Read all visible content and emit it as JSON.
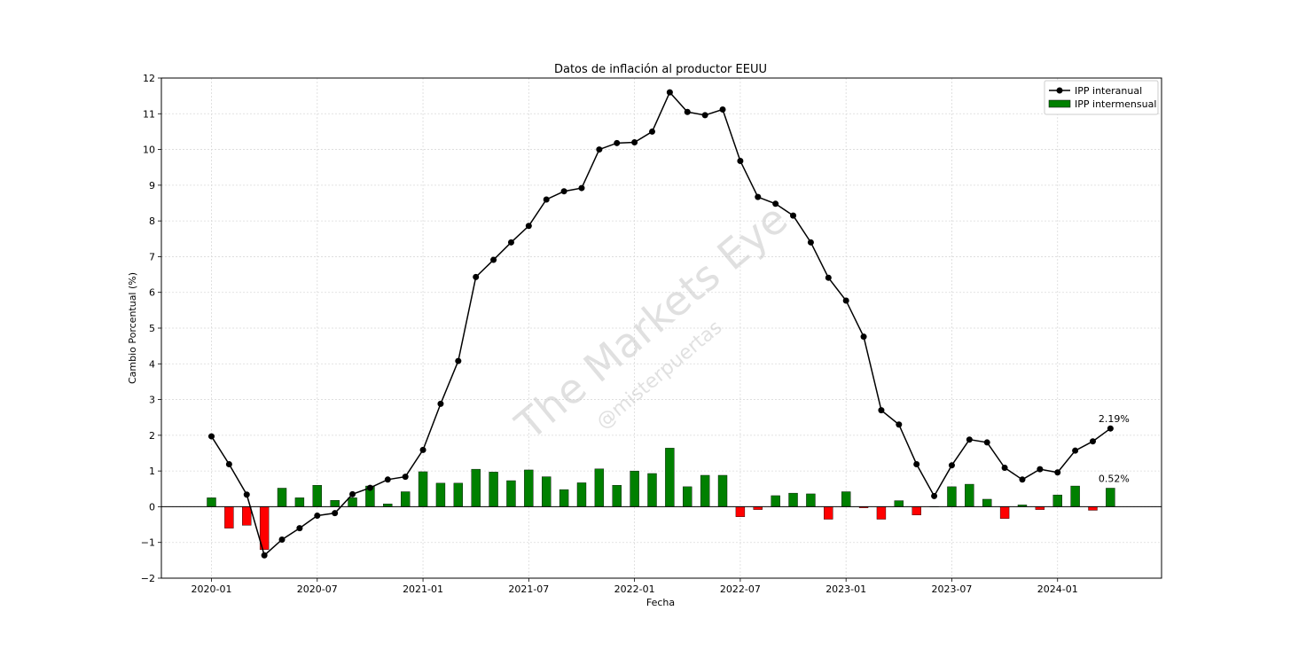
{
  "chart_data": {
    "type": "bar",
    "title": "Datos de inflación al productor EEUU",
    "xlabel": "Fecha",
    "ylabel": "Cambio Porcentual (%)",
    "ylim": [
      -2,
      12
    ],
    "yticks": [
      "−2",
      "−1",
      "0",
      "1",
      "2",
      "3",
      "4",
      "5",
      "6",
      "7",
      "8",
      "9",
      "10",
      "11",
      "12"
    ],
    "xticks": [
      "2020-01",
      "2020-07",
      "2021-01",
      "2021-07",
      "2022-01",
      "2022-07",
      "2023-01",
      "2023-07",
      "2024-01"
    ],
    "grid": true,
    "legend_position": "top-right",
    "x": [
      "2020-01",
      "2020-02",
      "2020-03",
      "2020-04",
      "2020-05",
      "2020-06",
      "2020-07",
      "2020-08",
      "2020-09",
      "2020-10",
      "2020-11",
      "2020-12",
      "2021-01",
      "2021-02",
      "2021-03",
      "2021-04",
      "2021-05",
      "2021-06",
      "2021-07",
      "2021-08",
      "2021-09",
      "2021-10",
      "2021-11",
      "2021-12",
      "2022-01",
      "2022-02",
      "2022-03",
      "2022-04",
      "2022-05",
      "2022-06",
      "2022-07",
      "2022-08",
      "2022-09",
      "2022-10",
      "2022-11",
      "2022-12",
      "2023-01",
      "2023-02",
      "2023-03",
      "2023-04",
      "2023-05",
      "2023-06",
      "2023-07",
      "2023-08",
      "2023-09",
      "2023-10",
      "2023-11",
      "2023-12",
      "2024-01",
      "2024-02",
      "2024-03",
      "2024-04"
    ],
    "series": [
      {
        "name": "IPP interanual",
        "type": "line",
        "color": "#000000",
        "values": [
          1.97,
          1.19,
          0.34,
          -1.36,
          -0.92,
          -0.6,
          -0.25,
          -0.18,
          0.35,
          0.53,
          0.76,
          0.84,
          1.59,
          2.88,
          4.08,
          6.43,
          6.91,
          7.4,
          7.86,
          8.6,
          8.83,
          8.92,
          10.0,
          10.18,
          10.2,
          10.5,
          11.6,
          11.05,
          10.96,
          11.12,
          9.68,
          8.67,
          8.48,
          8.15,
          7.4,
          6.41,
          5.77,
          4.76,
          2.7,
          2.3,
          1.19,
          0.3,
          1.16,
          1.88,
          1.8,
          1.09,
          0.76,
          1.05,
          0.96,
          1.57,
          1.83,
          2.19
        ]
      },
      {
        "name": "IPP intermensual",
        "type": "bar",
        "color_positive": "#008000",
        "color_negative": "#ff0000",
        "values": [
          0.25,
          -0.6,
          -0.52,
          -1.2,
          0.52,
          0.25,
          0.6,
          0.18,
          0.25,
          0.58,
          0.08,
          0.42,
          0.98,
          0.66,
          0.66,
          1.05,
          0.97,
          0.73,
          1.03,
          0.84,
          0.48,
          0.67,
          1.06,
          0.6,
          1.0,
          0.93,
          1.64,
          0.56,
          0.88,
          0.88,
          -0.28,
          -0.08,
          0.31,
          0.38,
          0.36,
          -0.35,
          0.42,
          -0.03,
          -0.35,
          0.17,
          -0.23,
          0.0,
          0.56,
          0.63,
          0.21,
          -0.33,
          0.05,
          -0.08,
          0.33,
          0.58,
          -0.1,
          0.52
        ]
      }
    ],
    "annotations": [
      "2.19%",
      "0.52%"
    ]
  },
  "watermark": {
    "main": "The Markets Eye",
    "sub": "@misterpuertas"
  }
}
